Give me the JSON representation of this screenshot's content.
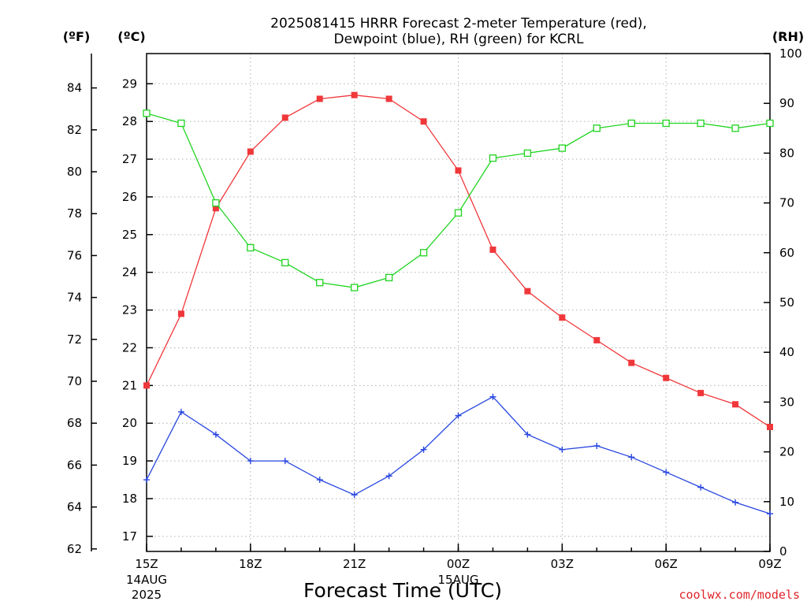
{
  "title": {
    "line1": "2025081415 HRRR Forecast 2-meter Temperature (red),",
    "line2": "Dewpoint (blue), RH (green) for KCRL"
  },
  "units": {
    "fahrenheit": "(ºF)",
    "celsius": "(ºC)",
    "rh": "(RH)"
  },
  "credit": "coolwx.com/models",
  "colors": {
    "temperature": "#f0373a",
    "dewpoint": "#2846e0",
    "rh": "#20d420"
  },
  "chart_data": {
    "type": "line",
    "title": "2025081415 HRRR Forecast 2-meter Temperature (red), Dewpoint (blue), RH (green) for KCRL",
    "xlabel": "Forecast Time (UTC)",
    "x": [
      0,
      1,
      2,
      3,
      4,
      5,
      6,
      7,
      8,
      9,
      10,
      11,
      12,
      13,
      14,
      15,
      16,
      17,
      18
    ],
    "x_ticks": [
      {
        "at": 0,
        "label": "15Z",
        "sub": [
          "14AUG",
          "2025"
        ]
      },
      {
        "at": 3,
        "label": "18Z",
        "sub": []
      },
      {
        "at": 6,
        "label": "21Z",
        "sub": []
      },
      {
        "at": 9,
        "label": "00Z",
        "sub": [
          "15AUG"
        ]
      },
      {
        "at": 12,
        "label": "03Z",
        "sub": []
      },
      {
        "at": 15,
        "label": "06Z",
        "sub": []
      },
      {
        "at": 18,
        "label": "09Z",
        "sub": []
      }
    ],
    "xlim": [
      0,
      18
    ],
    "axes": {
      "celsius": {
        "range": [
          16.6,
          29.8
        ],
        "ticks": [
          17,
          18,
          19,
          20,
          21,
          22,
          23,
          24,
          25,
          26,
          27,
          28,
          29
        ]
      },
      "fahrenheit": {
        "range": [
          61.88,
          85.64
        ],
        "ticks": [
          62,
          64,
          66,
          68,
          70,
          72,
          74,
          76,
          78,
          80,
          82,
          84
        ]
      },
      "rh": {
        "range": [
          0,
          100
        ],
        "ticks": [
          0,
          10,
          20,
          30,
          40,
          50,
          60,
          70,
          80,
          90,
          100
        ]
      }
    },
    "grid": true,
    "series": [
      {
        "name": "Temperature (red)",
        "axis": "celsius",
        "marker": "filled-square",
        "values": [
          21.0,
          22.9,
          25.7,
          27.2,
          28.1,
          28.6,
          28.7,
          28.6,
          28.0,
          26.7,
          24.6,
          23.5,
          22.8,
          22.2,
          21.6,
          21.2,
          20.8,
          20.5,
          19.9
        ]
      },
      {
        "name": "Dewpoint (blue)",
        "axis": "celsius",
        "marker": "plus",
        "values": [
          18.5,
          20.3,
          19.7,
          19.0,
          19.0,
          18.5,
          18.1,
          18.6,
          19.3,
          20.2,
          20.7,
          19.7,
          19.3,
          19.4,
          19.1,
          18.7,
          18.3,
          17.9,
          17.6
        ]
      },
      {
        "name": "RH (green)",
        "axis": "rh",
        "marker": "open-square",
        "values": [
          88,
          86,
          70,
          61,
          58,
          54,
          53,
          55,
          60,
          68,
          79,
          80,
          81,
          85,
          86,
          86,
          86,
          85,
          86
        ]
      }
    ]
  }
}
